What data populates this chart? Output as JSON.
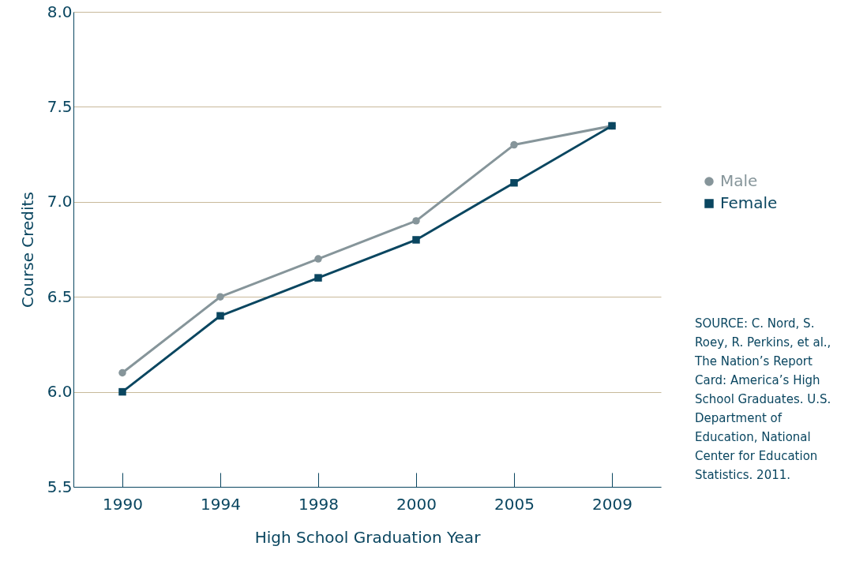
{
  "chart_data": {
    "type": "line",
    "xlabel": "High School Graduation Year",
    "ylabel": "Course Credits",
    "categories": [
      "1990",
      "1994",
      "1998",
      "2000",
      "2005",
      "2009"
    ],
    "series": [
      {
        "name": "Male",
        "color": "#86959a",
        "marker": "circle",
        "values": [
          6.1,
          6.5,
          6.7,
          6.9,
          7.3,
          7.4
        ]
      },
      {
        "name": "Female",
        "color": "#0a4660",
        "marker": "square",
        "values": [
          6.0,
          6.4,
          6.6,
          6.8,
          7.1,
          7.4
        ]
      }
    ],
    "ylim": [
      5.5,
      8.0
    ],
    "yticks": [
      5.5,
      {
        "value": 6,
        "label": "6.0"
      },
      6.5,
      {
        "value": 7,
        "label": "7.0"
      },
      7.5,
      {
        "value": 8,
        "label": "8.0"
      }
    ],
    "grid": "y",
    "legend": "right",
    "annotations": [
      "SOURCE: C. Nord, S. Roey, R. Perkins, et al., The Nation’s Report Card: America’s High School Graduates. U.S. Department of Education, National Center for Education Statistics. 2011."
    ]
  }
}
